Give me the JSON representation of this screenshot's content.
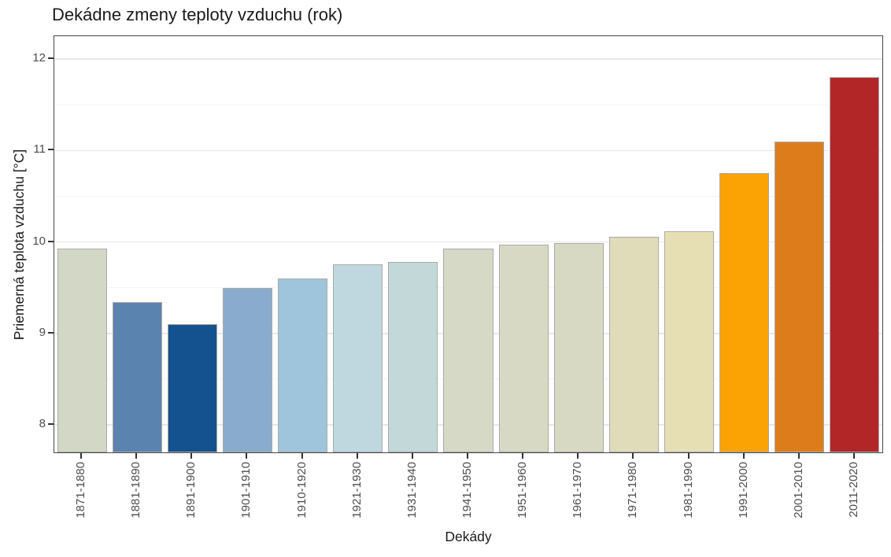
{
  "chart_data": {
    "type": "bar",
    "title": "Dekádne zmeny teploty vzduchu (rok)",
    "xlabel": "Dekády",
    "ylabel": "Priemerná teplota vzduchu [°C]",
    "categories": [
      "1871-1880",
      "1881-1890",
      "1891-1900",
      "1901-1910",
      "1910-1920",
      "1921-1930",
      "1931-1940",
      "1941-1950",
      "1951-1960",
      "1961-1970",
      "1971-1980",
      "1981-1990",
      "1991-2000",
      "2001-2010",
      "2011-2020"
    ],
    "values": [
      9.93,
      9.34,
      9.1,
      9.5,
      9.6,
      9.76,
      9.78,
      9.93,
      9.97,
      9.99,
      10.06,
      10.12,
      10.75,
      11.1,
      11.8
    ],
    "bar_colors": [
      "#d3d8c6",
      "#5b83b0",
      "#14518f",
      "#89acce",
      "#9fc5dd",
      "#bfd8e0",
      "#c3d8d8",
      "#d5d9c6",
      "#d7d9c4",
      "#d8d9c2",
      "#e0dcba",
      "#e7dfb4",
      "#fba205",
      "#dd7c1b",
      "#b22628"
    ],
    "bar_border_color": "#a9a9a9",
    "yticks": [
      8,
      9,
      10,
      11,
      12
    ],
    "minor_yticks": [
      8.5,
      9.5,
      10.5,
      11.5
    ],
    "ylim": [
      7.7,
      12.25
    ],
    "grid": "horizontal major+minor",
    "gridline_color": "#e7e7e7",
    "minor_gridline_color": "#f3f3f3",
    "legend": "none",
    "bar_width_fraction": 0.9
  }
}
